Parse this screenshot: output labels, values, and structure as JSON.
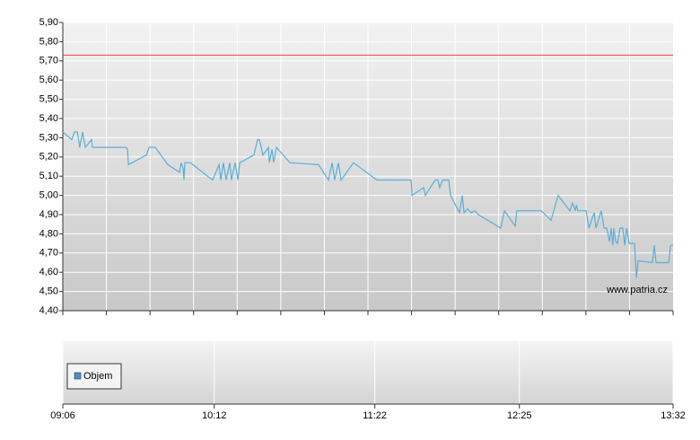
{
  "chart_data": [
    {
      "type": "line",
      "x": [
        546.0,
        549.9,
        551.1,
        552.3,
        553.4,
        554.6,
        555.8,
        558.5,
        558.9,
        573.4,
        574.2,
        574.6,
        582.4,
        583.6,
        586.3,
        591.8,
        596.9,
        597.6,
        598.4,
        598.8,
        599.2,
        601.6,
        611.3,
        614.1,
        614.9,
        616.0,
        617.2,
        618.8,
        619.5,
        621.1,
        622.3,
        623.1,
        629.3,
        630.9,
        631.7,
        633.2,
        635.6,
        636.0,
        637.2,
        637.9,
        639.1,
        645.0,
        657.5,
        661.8,
        663.4,
        664.5,
        666.1,
        667.3,
        672.7,
        682.9,
        683.3,
        697.8,
        698.2,
        703.3,
        704.0,
        708.3,
        709.5,
        710.3,
        711.5,
        714.2,
        715.0,
        718.9,
        720.1,
        720.9,
        722.4,
        724.0,
        725.6,
        727.1,
        736.9,
        738.5,
        743.2,
        743.9,
        754.5,
        758.8,
        760.0,
        761.9,
        767.0,
        768.2,
        769.4,
        769.8,
        770.5,
        774.1,
        775.3,
        777.6,
        778.4,
        780.7,
        781.9,
        783.1,
        784.3,
        785.0,
        785.8,
        786.2,
        787.0,
        787.8,
        788.9,
        790.1,
        790.9,
        791.7,
        792.9,
        795.2,
        796.0,
        796.8,
        803.0,
        803.8,
        804.6,
        810.1,
        810.9,
        812.0
      ],
      "series": [
        {
          "color": "#5aaed8",
          "values": [
            5.33,
            5.29,
            5.33,
            5.33,
            5.25,
            5.33,
            5.25,
            5.29,
            5.25,
            5.25,
            5.24,
            5.16,
            5.21,
            5.25,
            5.25,
            5.16,
            5.12,
            5.17,
            5.14,
            5.08,
            5.17,
            5.17,
            5.08,
            5.16,
            5.08,
            5.17,
            5.08,
            5.17,
            5.08,
            5.17,
            5.08,
            5.17,
            5.21,
            5.29,
            5.29,
            5.21,
            5.25,
            5.17,
            5.24,
            5.17,
            5.25,
            5.17,
            5.16,
            5.08,
            5.17,
            5.08,
            5.17,
            5.08,
            5.17,
            5.08,
            5.08,
            5.08,
            5.0,
            5.04,
            5.0,
            5.08,
            5.08,
            5.04,
            5.08,
            5.08,
            5.0,
            4.91,
            5.0,
            4.91,
            4.93,
            4.91,
            4.92,
            4.9,
            4.83,
            4.92,
            4.84,
            4.92,
            4.92,
            4.87,
            4.92,
            5.0,
            4.92,
            4.96,
            4.92,
            4.95,
            4.92,
            4.92,
            4.83,
            4.91,
            4.83,
            4.92,
            4.83,
            4.83,
            4.76,
            4.83,
            4.74,
            4.83,
            4.76,
            4.75,
            4.83,
            4.83,
            4.74,
            4.83,
            4.75,
            4.75,
            4.57,
            4.66,
            4.65,
            4.74,
            4.65,
            4.65,
            4.74,
            4.74
          ]
        }
      ],
      "reference": {
        "value": 5.73,
        "color": "#e04a3c"
      },
      "xlim": [
        546,
        812
      ],
      "ylim": [
        4.4,
        5.9
      ],
      "yticks": [
        {
          "value": 4.4,
          "label": "4,40"
        },
        {
          "value": 4.5,
          "label": "4,50"
        },
        {
          "value": 4.6,
          "label": "4,60"
        },
        {
          "value": 4.7,
          "label": "4,70"
        },
        {
          "value": 4.8,
          "label": "4,80"
        },
        {
          "value": 4.9,
          "label": "4,90"
        },
        {
          "value": 5.0,
          "label": "5,00"
        },
        {
          "value": 5.1,
          "label": "5,10"
        },
        {
          "value": 5.2,
          "label": "5,20"
        },
        {
          "value": 5.3,
          "label": "5,30"
        },
        {
          "value": 5.4,
          "label": "5,40"
        },
        {
          "value": 5.5,
          "label": "5,50"
        },
        {
          "value": 5.6,
          "label": "5,60"
        },
        {
          "value": 5.7,
          "label": "5,70"
        },
        {
          "value": 5.8,
          "label": "5,80"
        },
        {
          "value": 5.9,
          "label": "5,90"
        }
      ],
      "grid": true,
      "watermark": "www.patria.cz"
    },
    {
      "type": "bar",
      "series": [
        {
          "name": "Objem",
          "color": "#4a90c8"
        }
      ],
      "xlim": [
        546,
        812
      ],
      "xticks": [
        {
          "value": 546,
          "label": "09:06"
        },
        {
          "value": 612,
          "label": "10:12"
        },
        {
          "value": 682,
          "label": "11:22"
        },
        {
          "value": 745,
          "label": "12:25"
        },
        {
          "value": 812,
          "label": "13:32"
        }
      ],
      "grid": true,
      "legend": "top-left"
    }
  ]
}
